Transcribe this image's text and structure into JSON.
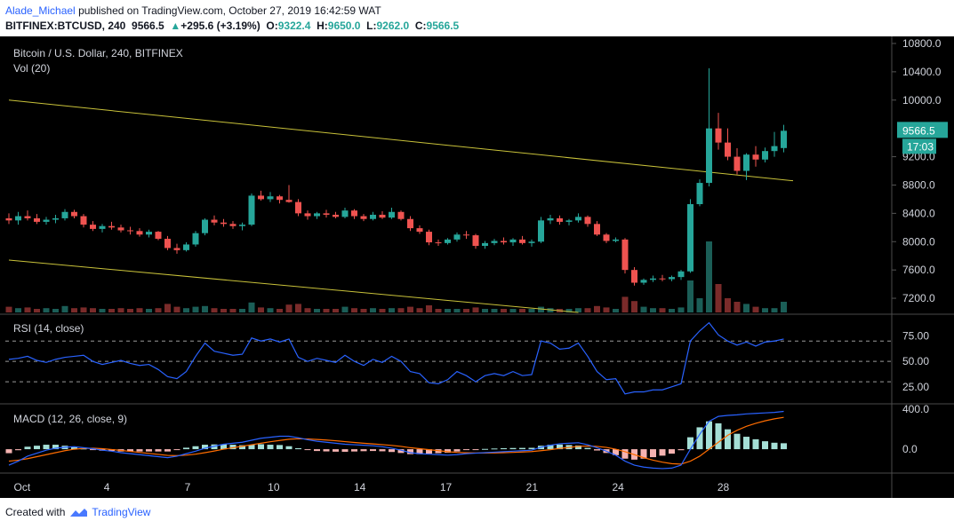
{
  "header": {
    "author": "Alade_Michael",
    "published": "published on TradingView.com, October 27, 2019 16:42:59 WAT",
    "symbol": "BITFINEX:BTCUSD, 240",
    "last": "9566.5",
    "change_arrow": "▲",
    "change": "+295.6 (+3.19%)",
    "o_label": "O:",
    "o_value": "9322.4",
    "h_label": "H:",
    "h_value": "9650.0",
    "l_label": "L:",
    "l_value": "9262.0",
    "c_label": "C:",
    "c_value": "9566.5"
  },
  "footer": {
    "created_with": "Created with",
    "brand": "TradingView"
  },
  "colors": {
    "up": "#26a69a",
    "down": "#ef5350",
    "trendline": "#c9c23a",
    "rsi": "#2962ff",
    "macd": "#2962ff",
    "signal": "#ff6d00",
    "hist_up": "#a5dfd6",
    "hist_down": "#f5b3b1",
    "background": "#000000"
  },
  "chart_data": [
    {
      "type": "candlestick",
      "title": "Bitcoin / U.S. Dollar, 240, BITFINEX",
      "volume_label": "Vol (20)",
      "x_ticks": [
        "Oct",
        "4",
        "7",
        "10",
        "14",
        "17",
        "21",
        "24",
        "28"
      ],
      "y_ticks": [
        "10800.0",
        "10400.0",
        "10000.0",
        "9200.0",
        "8800.0",
        "8400.0",
        "8000.0",
        "7600.0",
        "7200.0"
      ],
      "ylim": [
        7000,
        10900
      ],
      "price_label": "9566.5",
      "countdown_label": "17:03",
      "trendlines": [
        {
          "x": [
            0,
            84
          ],
          "y": [
            10000,
            8860
          ]
        },
        {
          "x": [
            0,
            61
          ],
          "y": [
            7740,
            7000
          ]
        }
      ],
      "candles": [
        [
          8330,
          8400,
          8250,
          8300
        ],
        [
          8300,
          8420,
          8240,
          8360
        ],
        [
          8360,
          8440,
          8300,
          8330
        ],
        [
          8330,
          8390,
          8250,
          8280
        ],
        [
          8280,
          8350,
          8240,
          8310
        ],
        [
          8310,
          8380,
          8260,
          8330
        ],
        [
          8330,
          8460,
          8300,
          8420
        ],
        [
          8420,
          8450,
          8330,
          8360
        ],
        [
          8360,
          8390,
          8200,
          8240
        ],
        [
          8240,
          8290,
          8150,
          8180
        ],
        [
          8180,
          8250,
          8130,
          8220
        ],
        [
          8220,
          8280,
          8170,
          8200
        ],
        [
          8200,
          8240,
          8130,
          8160
        ],
        [
          8160,
          8210,
          8100,
          8150
        ],
        [
          8150,
          8190,
          8070,
          8100
        ],
        [
          8100,
          8170,
          8060,
          8140
        ],
        [
          8140,
          8150,
          8020,
          8040
        ],
        [
          8040,
          8080,
          7880,
          7910
        ],
        [
          7910,
          7970,
          7830,
          7880
        ],
        [
          7880,
          7990,
          7860,
          7960
        ],
        [
          7960,
          8150,
          7930,
          8120
        ],
        [
          8120,
          8330,
          8090,
          8310
        ],
        [
          8310,
          8370,
          8230,
          8270
        ],
        [
          8270,
          8320,
          8210,
          8250
        ],
        [
          8250,
          8290,
          8180,
          8220
        ],
        [
          8220,
          8270,
          8160,
          8240
        ],
        [
          8240,
          8680,
          8220,
          8650
        ],
        [
          8650,
          8720,
          8580,
          8600
        ],
        [
          8600,
          8700,
          8560,
          8640
        ],
        [
          8640,
          8660,
          8540,
          8590
        ],
        [
          8590,
          8800,
          8550,
          8560
        ],
        [
          8560,
          8600,
          8360,
          8400
        ],
        [
          8400,
          8440,
          8310,
          8360
        ],
        [
          8360,
          8420,
          8320,
          8400
        ],
        [
          8400,
          8450,
          8340,
          8380
        ],
        [
          8380,
          8420,
          8330,
          8350
        ],
        [
          8350,
          8480,
          8330,
          8440
        ],
        [
          8440,
          8460,
          8320,
          8360
        ],
        [
          8360,
          8390,
          8290,
          8320
        ],
        [
          8320,
          8420,
          8300,
          8380
        ],
        [
          8380,
          8430,
          8320,
          8340
        ],
        [
          8340,
          8480,
          8320,
          8420
        ],
        [
          8420,
          8440,
          8300,
          8320
        ],
        [
          8320,
          8360,
          8150,
          8190
        ],
        [
          8190,
          8230,
          8110,
          8140
        ],
        [
          8140,
          8170,
          7950,
          7990
        ],
        [
          7990,
          8030,
          7940,
          7980
        ],
        [
          7980,
          8050,
          7960,
          8030
        ],
        [
          8030,
          8130,
          8000,
          8100
        ],
        [
          8100,
          8150,
          8040,
          8090
        ],
        [
          8090,
          8110,
          7900,
          7940
        ],
        [
          7940,
          8010,
          7900,
          7980
        ],
        [
          7980,
          8040,
          7950,
          8010
        ],
        [
          8010,
          8060,
          7960,
          7990
        ],
        [
          7990,
          8050,
          7940,
          8030
        ],
        [
          8030,
          8080,
          7960,
          7980
        ],
        [
          7980,
          8030,
          7930,
          8000
        ],
        [
          8000,
          8350,
          7980,
          8300
        ],
        [
          8300,
          8380,
          8250,
          8330
        ],
        [
          8330,
          8370,
          8240,
          8280
        ],
        [
          8280,
          8320,
          8230,
          8300
        ],
        [
          8300,
          8400,
          8270,
          8350
        ],
        [
          8350,
          8370,
          8210,
          8250
        ],
        [
          8250,
          8290,
          8080,
          8100
        ],
        [
          8100,
          8120,
          7980,
          8010
        ],
        [
          8010,
          8060,
          7990,
          8030
        ],
        [
          8030,
          8050,
          7550,
          7600
        ],
        [
          7600,
          7640,
          7380,
          7420
        ],
        [
          7420,
          7480,
          7390,
          7460
        ],
        [
          7460,
          7520,
          7430,
          7480
        ],
        [
          7480,
          7530,
          7440,
          7470
        ],
        [
          7470,
          7520,
          7440,
          7500
        ],
        [
          7500,
          7600,
          7460,
          7580
        ],
        [
          7580,
          8600,
          7560,
          8530
        ],
        [
          8530,
          8880,
          8500,
          8830
        ],
        [
          8830,
          10450,
          8780,
          9600
        ],
        [
          9600,
          9820,
          9300,
          9400
        ],
        [
          9400,
          9600,
          9150,
          9200
        ],
        [
          9200,
          9320,
          8950,
          9000
        ],
        [
          9000,
          9250,
          8870,
          9230
        ],
        [
          9230,
          9350,
          9060,
          9160
        ],
        [
          9160,
          9330,
          9120,
          9280
        ],
        [
          9280,
          9550,
          9200,
          9350
        ],
        [
          9322.4,
          9650,
          9262,
          9566.5
        ]
      ],
      "volume": [
        0.08,
        0.06,
        0.07,
        0.05,
        0.06,
        0.05,
        0.09,
        0.06,
        0.07,
        0.06,
        0.05,
        0.05,
        0.06,
        0.05,
        0.06,
        0.05,
        0.06,
        0.12,
        0.08,
        0.06,
        0.08,
        0.09,
        0.06,
        0.05,
        0.05,
        0.05,
        0.14,
        0.07,
        0.06,
        0.05,
        0.11,
        0.12,
        0.06,
        0.05,
        0.05,
        0.05,
        0.08,
        0.06,
        0.05,
        0.06,
        0.05,
        0.06,
        0.06,
        0.08,
        0.06,
        0.1,
        0.05,
        0.05,
        0.05,
        0.05,
        0.07,
        0.05,
        0.05,
        0.05,
        0.05,
        0.05,
        0.05,
        0.08,
        0.06,
        0.05,
        0.05,
        0.06,
        0.06,
        0.09,
        0.07,
        0.05,
        0.22,
        0.16,
        0.08,
        0.06,
        0.06,
        0.05,
        0.07,
        0.45,
        0.2,
        1.0,
        0.4,
        0.2,
        0.15,
        0.12,
        0.08,
        0.06,
        0.06,
        0.15
      ]
    },
    {
      "type": "line",
      "title": "RSI (14, close)",
      "y_ticks": [
        "75.00",
        "50.00",
        "25.00"
      ],
      "ylim": [
        10,
        92
      ],
      "levels": [
        70,
        50,
        30
      ],
      "values": [
        52,
        53,
        55,
        51,
        49,
        52,
        54,
        55,
        56,
        50,
        47,
        49,
        51,
        48,
        46,
        47,
        42,
        35,
        33,
        40,
        55,
        68,
        60,
        58,
        56,
        57,
        73,
        70,
        72,
        69,
        72,
        54,
        50,
        53,
        51,
        49,
        56,
        50,
        46,
        52,
        49,
        55,
        50,
        40,
        38,
        29,
        28,
        32,
        40,
        36,
        30,
        36,
        38,
        36,
        40,
        36,
        37,
        70,
        68,
        62,
        63,
        68,
        55,
        40,
        32,
        33,
        18,
        20,
        20,
        22,
        22,
        25,
        28,
        70,
        80,
        88,
        76,
        70,
        66,
        69,
        65,
        69,
        70,
        72
      ]
    },
    {
      "type": "line",
      "title": "MACD (12, 26, close, 9)",
      "y_ticks": [
        "400.0",
        "0.0"
      ],
      "ylim": [
        -240,
        420
      ],
      "series": [
        {
          "values": [
            -160,
            -120,
            -70,
            -40,
            -10,
            10,
            20,
            25,
            15,
            5,
            -10,
            -20,
            -35,
            -45,
            -55,
            -65,
            -75,
            -85,
            -70,
            -45,
            -20,
            10,
            30,
            50,
            60,
            70,
            90,
            110,
            120,
            130,
            130,
            115,
            95,
            80,
            70,
            60,
            50,
            45,
            40,
            35,
            25,
            10,
            -10,
            -35,
            -45,
            -50,
            -55,
            -60,
            -55,
            -45,
            -40,
            -35,
            -30,
            -25,
            -20,
            -15,
            -10,
            20,
            40,
            55,
            60,
            65,
            45,
            15,
            -20,
            -60,
            -120,
            -160,
            -180,
            -190,
            -195,
            -190,
            -160,
            0,
            150,
            280,
            330,
            340,
            345,
            355,
            360,
            365,
            370,
            380
          ]
        },
        {
          "values": [
            -120,
            -110,
            -95,
            -75,
            -55,
            -35,
            -15,
            0,
            8,
            10,
            5,
            -3,
            -12,
            -22,
            -32,
            -42,
            -52,
            -62,
            -65,
            -60,
            -50,
            -35,
            -18,
            0,
            15,
            30,
            45,
            60,
            75,
            88,
            100,
            105,
            103,
            98,
            92,
            85,
            76,
            68,
            60,
            53,
            46,
            38,
            28,
            15,
            5,
            -5,
            -15,
            -25,
            -32,
            -36,
            -38,
            -38,
            -37,
            -35,
            -32,
            -28,
            -24,
            -15,
            -5,
            8,
            18,
            28,
            32,
            28,
            18,
            0,
            -25,
            -55,
            -85,
            -110,
            -130,
            -145,
            -150,
            -120,
            -70,
            0,
            70,
            140,
            190,
            230,
            260,
            285,
            305,
            320
          ]
        }
      ],
      "histogram": [
        -40,
        -10,
        25,
        35,
        45,
        45,
        35,
        25,
        7,
        -5,
        -15,
        -17,
        -23,
        -23,
        -23,
        -23,
        -23,
        -23,
        -5,
        15,
        30,
        45,
        48,
        50,
        45,
        40,
        45,
        50,
        45,
        42,
        30,
        10,
        -8,
        -18,
        -22,
        -25,
        -26,
        -23,
        -20,
        -18,
        -21,
        -28,
        -38,
        -50,
        -50,
        -45,
        -40,
        -35,
        -23,
        -9,
        -2,
        3,
        7,
        10,
        12,
        13,
        14,
        35,
        45,
        47,
        42,
        37,
        13,
        -13,
        -38,
        -60,
        -95,
        -105,
        -95,
        -80,
        -65,
        -45,
        -10,
        120,
        220,
        280,
        260,
        200,
        155,
        125,
        100,
        80,
        65,
        60
      ]
    }
  ],
  "icons": {
    "brand_logo": "tradingview-cloud-icon"
  }
}
